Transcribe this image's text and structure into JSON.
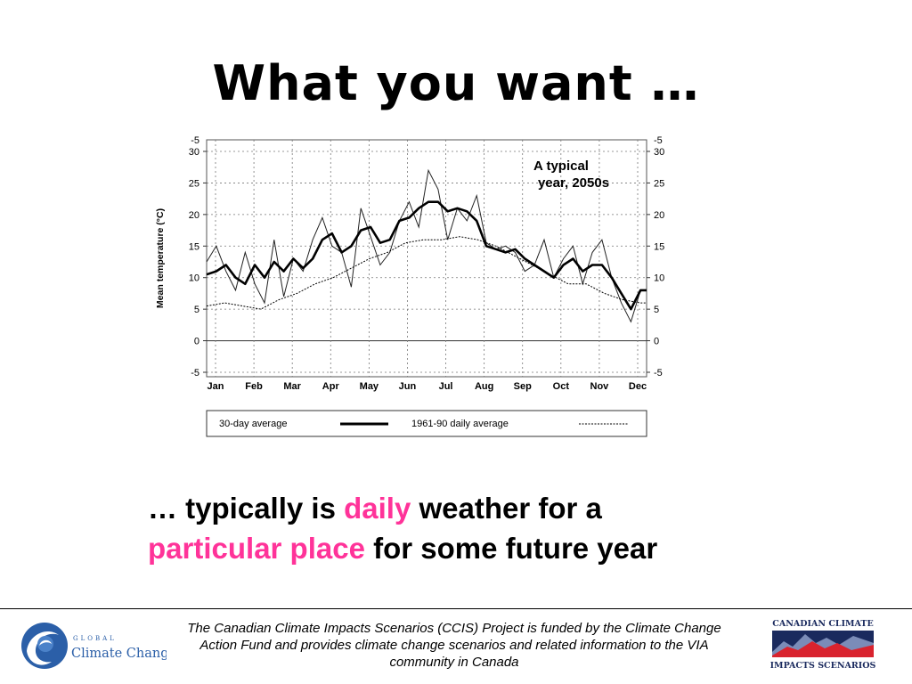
{
  "slide": {
    "title": "What you want …",
    "caption": {
      "p1": "… typically is ",
      "h1": "daily",
      "p2": " weather for a",
      "h2": "particular place",
      "p3": " for some future year"
    },
    "footer": "The Canadian Climate Impacts Scenarios (CCIS) Project is funded by the Climate Change Action Fund and provides climate change scenarios and related information to the VIA community in Canada",
    "accent_color": "#ff3399",
    "logos": {
      "left": {
        "line1": "GLOBAL",
        "line2": "Climate Change",
        "icon": "globe-swirl-icon"
      },
      "right": {
        "line1": "CANADIAN CLIMATE",
        "line2": "IMPACTS SCENARIOS",
        "icon": "mountain-chart-icon"
      }
    }
  },
  "chart_data": {
    "type": "line",
    "annotation": [
      "A  typical",
      "year, 2050s"
    ],
    "ylabel": "Mean temperature (°C)",
    "ylim": [
      -5,
      30
    ],
    "yticks": [
      -5,
      0,
      5,
      10,
      15,
      20,
      25,
      30
    ],
    "yticks_top_extra": "-5",
    "xlim": [
      0,
      365
    ],
    "month_labels": [
      "Jan",
      "Feb",
      "Mar",
      "Apr",
      "May",
      "Jun",
      "Jul",
      "Aug",
      "Sep",
      "Oct",
      "Nov",
      "Dec"
    ],
    "grid": true,
    "legend": {
      "placement": "below",
      "entries": [
        {
          "label": "30-day average",
          "style": "thick-solid"
        },
        {
          "label": "1961-90 daily average",
          "style": "dotted"
        }
      ]
    },
    "series": [
      {
        "role": "daily",
        "style": "thin-solid",
        "x": [
          0,
          8,
          16,
          24,
          32,
          40,
          48,
          56,
          64,
          72,
          80,
          88,
          96,
          104,
          112,
          120,
          128,
          136,
          144,
          152,
          160,
          168,
          176,
          184,
          192,
          200,
          208,
          216,
          224,
          232,
          240,
          248,
          256,
          264,
          272,
          280,
          288,
          296,
          304,
          312,
          320,
          328,
          336,
          344,
          352,
          360,
          365
        ],
        "values": [
          12.5,
          15,
          11,
          8,
          14,
          9,
          6,
          16,
          7,
          13,
          11,
          16,
          19.5,
          15,
          14,
          8.5,
          21,
          16.5,
          12,
          14,
          19,
          22,
          18,
          27,
          24,
          16,
          21,
          19,
          23,
          15.5,
          14.5,
          15,
          14,
          11,
          12,
          16,
          10,
          13,
          15,
          9,
          14,
          16,
          10,
          6,
          3,
          8,
          8
        ]
      },
      {
        "role": "30-day average",
        "style": "thick-solid",
        "x": [
          0,
          8,
          16,
          24,
          32,
          40,
          48,
          56,
          64,
          72,
          80,
          88,
          96,
          104,
          112,
          120,
          128,
          136,
          144,
          152,
          160,
          168,
          176,
          184,
          192,
          200,
          208,
          216,
          224,
          232,
          240,
          248,
          256,
          264,
          272,
          280,
          288,
          296,
          304,
          312,
          320,
          328,
          336,
          344,
          352,
          360,
          365
        ],
        "values": [
          10.5,
          11,
          12,
          10,
          9,
          12,
          10,
          12.5,
          11,
          13,
          11.5,
          13,
          16,
          17,
          14,
          15,
          17.5,
          18,
          15.5,
          16,
          19,
          19.5,
          21,
          22,
          22,
          20.5,
          21,
          20.5,
          19,
          15,
          14.5,
          14,
          14.5,
          13,
          12,
          11,
          10,
          12,
          13,
          11,
          12,
          12,
          10,
          7.5,
          5,
          8,
          8
        ]
      },
      {
        "role": "1961-90 daily average",
        "style": "dotted",
        "x": [
          0,
          15,
          30,
          45,
          60,
          75,
          90,
          105,
          120,
          135,
          150,
          165,
          180,
          195,
          210,
          225,
          240,
          255,
          270,
          285,
          300,
          315,
          330,
          345,
          360,
          365
        ],
        "values": [
          5.5,
          6,
          5.5,
          5,
          6.5,
          7.5,
          9,
          10,
          11.5,
          13,
          14,
          15.5,
          16,
          16,
          16.5,
          16,
          15,
          13.5,
          12,
          10.5,
          9,
          9,
          7.5,
          6.5,
          6,
          6
        ]
      }
    ]
  }
}
